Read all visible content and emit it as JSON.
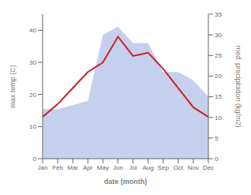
{
  "chart_data": {
    "type": "line",
    "categories": [
      "Jan",
      "Feb",
      "Mar",
      "Apr",
      "May",
      "Jun",
      "Jul",
      "Aug",
      "Sep",
      "Oct",
      "Nov",
      "Dec"
    ],
    "xlabel": "date (month)",
    "ylabel": "max temp (C)",
    "y2label": "med. precipitation (kg/m2)",
    "series": [
      {
        "type": "area",
        "axis": "y2",
        "color": "#c5d0ee",
        "values": [
          12,
          12,
          13,
          14,
          30,
          32,
          28,
          28,
          21,
          21,
          19,
          15
        ]
      },
      {
        "type": "line",
        "color": "#cc2222",
        "values": [
          13,
          17,
          22,
          27,
          30,
          38,
          32,
          33,
          28,
          22,
          16,
          13
        ]
      }
    ],
    "ylim": [
      0,
      45
    ],
    "yticks": [
      0,
      10,
      20,
      30,
      40
    ],
    "y2lim": [
      0,
      35
    ],
    "y2ticks": [
      0,
      5,
      10,
      15,
      20,
      25,
      30,
      35
    ],
    "grid": false
  }
}
